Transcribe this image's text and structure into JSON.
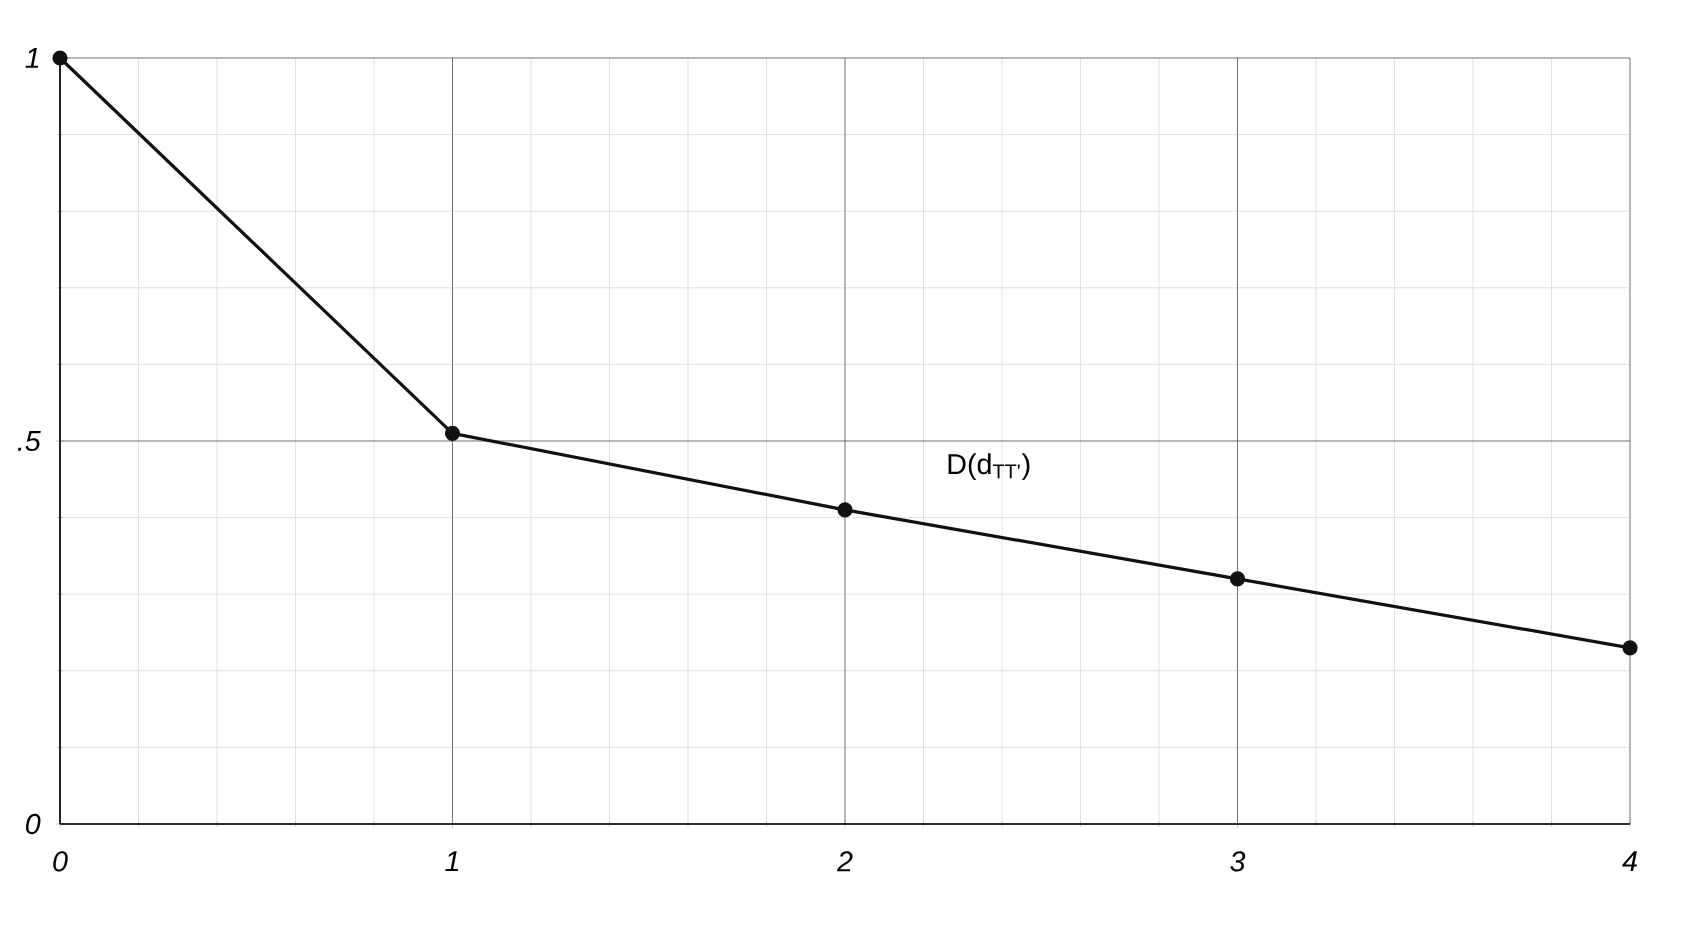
{
  "chart_data": {
    "type": "line",
    "x": [
      0,
      1,
      2,
      3,
      4
    ],
    "series": [
      {
        "color": "#111111",
        "values": [
          1,
          0.51,
          0.41,
          0.32,
          0.23
        ]
      }
    ],
    "xlim": [
      0,
      4
    ],
    "ylim": [
      0,
      1
    ],
    "xticks": [
      0,
      1,
      2,
      3,
      4
    ],
    "yticks": [
      0,
      {
        "value": 0.5,
        "label": ".5"
      },
      1
    ],
    "grid": true,
    "marker": "circle",
    "line_style": "solid",
    "annotations": [
      "D(d$_{TT'}$)"
    ]
  }
}
